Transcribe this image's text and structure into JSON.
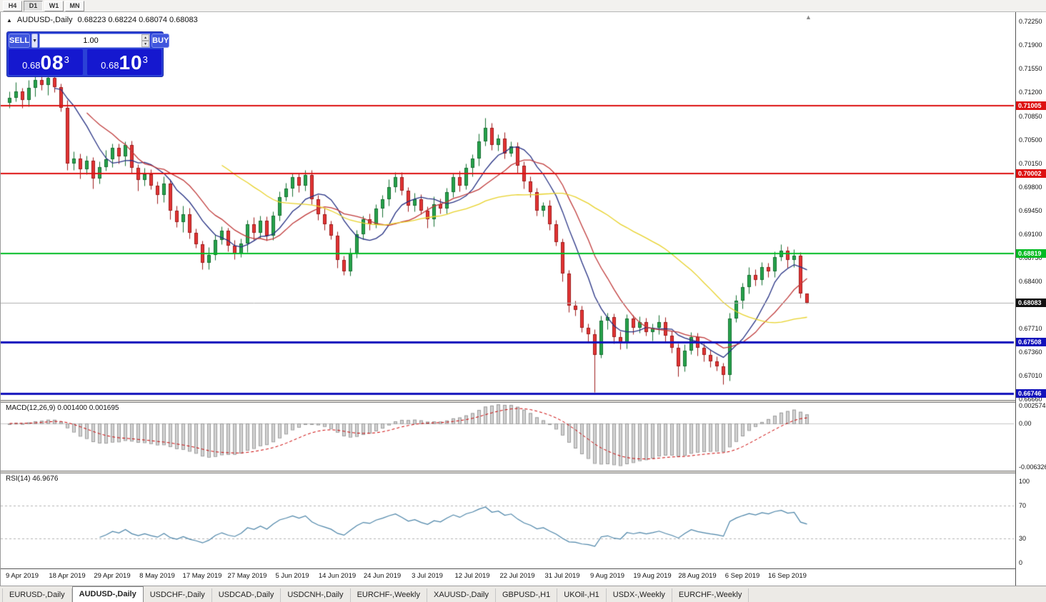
{
  "timeframe_toolbar": {
    "buttons": [
      "H4",
      "D1",
      "W1",
      "MN"
    ],
    "active": "D1"
  },
  "chart_header": {
    "marker": "▲",
    "title": "AUDUSD-,Daily",
    "ohlc": "0.68223 0.68224 0.68074 0.68083"
  },
  "one_click": {
    "sell_label": "SELL",
    "buy_label": "BUY",
    "volume": "1.00",
    "sell_price": {
      "prefix": "0.68",
      "big": "08",
      "sup": "3"
    },
    "buy_price": {
      "prefix": "0.68",
      "big": "10",
      "sup": "3"
    }
  },
  "price_axis": {
    "ticks": [
      {
        "label": "0.72250",
        "value": 0.7225
      },
      {
        "label": "0.71900",
        "value": 0.719
      },
      {
        "label": "0.71550",
        "value": 0.7155
      },
      {
        "label": "0.71200",
        "value": 0.712
      },
      {
        "label": "0.70850",
        "value": 0.7085
      },
      {
        "label": "0.70500",
        "value": 0.705
      },
      {
        "label": "0.70150",
        "value": 0.7015
      },
      {
        "label": "0.69800",
        "value": 0.698
      },
      {
        "label": "0.69450",
        "value": 0.6945
      },
      {
        "label": "0.69100",
        "value": 0.691
      },
      {
        "label": "0.68750",
        "value": 0.6875
      },
      {
        "label": "0.68400",
        "value": 0.684
      },
      {
        "label": "0.67710",
        "value": 0.6771
      },
      {
        "label": "0.67360",
        "value": 0.6736
      },
      {
        "label": "0.67010",
        "value": 0.6701
      },
      {
        "label": "0.66660",
        "value": 0.6666
      }
    ]
  },
  "levels": [
    {
      "label": "0.71005",
      "value": 0.71005,
      "color": "#dd1111",
      "width": 2
    },
    {
      "label": "0.70002",
      "value": 0.70002,
      "color": "#dd1111",
      "width": 2
    },
    {
      "label": "0.68819",
      "value": 0.68819,
      "color": "#00bb22",
      "width": 2
    },
    {
      "label": "0.67508",
      "value": 0.67508,
      "color": "#1111bb",
      "width": 3
    },
    {
      "label": "0.66746",
      "value": 0.66746,
      "color": "#1111bb",
      "width": 3
    }
  ],
  "current_price": {
    "label": "0.68083",
    "value": 0.68083,
    "bg": "#111111",
    "line_color": "#b0b0b0"
  },
  "chart_data": {
    "type": "candlestick",
    "symbol": "AUDUSD",
    "period": "Daily",
    "bull_color": "#27a24b",
    "bull_border": "#156f31",
    "bear_color": "#e23434",
    "bear_border": "#9e1b1b",
    "moving_averages": [
      {
        "period": 8,
        "color": "#253083"
      },
      {
        "period": 13,
        "color": "#c03a3a"
      },
      {
        "period": 34,
        "color": "#e8d229"
      }
    ],
    "candles": [
      [
        0.7105,
        0.7121,
        0.7097,
        0.7112
      ],
      [
        0.7112,
        0.7135,
        0.7107,
        0.7121
      ],
      [
        0.7121,
        0.7127,
        0.7097,
        0.7109
      ],
      [
        0.7109,
        0.7138,
        0.7099,
        0.7127
      ],
      [
        0.7127,
        0.7154,
        0.7114,
        0.7138
      ],
      [
        0.7138,
        0.7145,
        0.7124,
        0.7131
      ],
      [
        0.7131,
        0.7154,
        0.7116,
        0.7142
      ],
      [
        0.7142,
        0.7151,
        0.712,
        0.7128
      ],
      [
        0.7128,
        0.7133,
        0.7092,
        0.7097
      ],
      [
        0.7097,
        0.7109,
        0.7005,
        0.7015
      ],
      [
        0.7015,
        0.7033,
        0.7005,
        0.7022
      ],
      [
        0.7022,
        0.703,
        0.6993,
        0.7006
      ],
      [
        0.7006,
        0.7026,
        0.6999,
        0.7019
      ],
      [
        0.7019,
        0.7024,
        0.6978,
        0.6993
      ],
      [
        0.6993,
        0.7018,
        0.6985,
        0.7009
      ],
      [
        0.7009,
        0.7035,
        0.7004,
        0.7021
      ],
      [
        0.7021,
        0.7044,
        0.7009,
        0.7038
      ],
      [
        0.7038,
        0.7044,
        0.7015,
        0.7025
      ],
      [
        0.7025,
        0.7048,
        0.7012,
        0.7042
      ],
      [
        0.7042,
        0.7049,
        0.7001,
        0.7008
      ],
      [
        0.7008,
        0.7014,
        0.6975,
        0.699
      ],
      [
        0.699,
        0.7008,
        0.6982,
        0.6999
      ],
      [
        0.6999,
        0.7006,
        0.6977,
        0.6982
      ],
      [
        0.6982,
        0.6988,
        0.6956,
        0.6968
      ],
      [
        0.6968,
        0.6996,
        0.6958,
        0.6985
      ],
      [
        0.6985,
        0.6991,
        0.6932,
        0.6945
      ],
      [
        0.6945,
        0.6952,
        0.6921,
        0.6928
      ],
      [
        0.6928,
        0.6952,
        0.6913,
        0.694
      ],
      [
        0.694,
        0.6949,
        0.6904,
        0.6912
      ],
      [
        0.6912,
        0.6919,
        0.689,
        0.6895
      ],
      [
        0.6895,
        0.6901,
        0.6858,
        0.6868
      ],
      [
        0.6868,
        0.6891,
        0.6858,
        0.688
      ],
      [
        0.688,
        0.691,
        0.6872,
        0.6902
      ],
      [
        0.6902,
        0.6922,
        0.6895,
        0.6915
      ],
      [
        0.6915,
        0.692,
        0.6885,
        0.6893
      ],
      [
        0.6893,
        0.6902,
        0.6873,
        0.6881
      ],
      [
        0.6881,
        0.6904,
        0.6876,
        0.6896
      ],
      [
        0.6896,
        0.6931,
        0.6884,
        0.6925
      ],
      [
        0.6925,
        0.6936,
        0.6902,
        0.6912
      ],
      [
        0.6912,
        0.6938,
        0.6905,
        0.693
      ],
      [
        0.693,
        0.6937,
        0.6901,
        0.6908
      ],
      [
        0.6908,
        0.6944,
        0.6902,
        0.6938
      ],
      [
        0.6938,
        0.6974,
        0.693,
        0.6965
      ],
      [
        0.6965,
        0.6986,
        0.696,
        0.6978
      ],
      [
        0.6978,
        0.7001,
        0.6966,
        0.6995
      ],
      [
        0.6995,
        0.7001,
        0.6972,
        0.6982
      ],
      [
        0.6982,
        0.7005,
        0.6975,
        0.6998
      ],
      [
        0.6998,
        0.7005,
        0.6955,
        0.6962
      ],
      [
        0.6962,
        0.6968,
        0.6931,
        0.694
      ],
      [
        0.694,
        0.6949,
        0.6917,
        0.6925
      ],
      [
        0.6925,
        0.693,
        0.6903,
        0.6908
      ],
      [
        0.6908,
        0.6914,
        0.686,
        0.6872
      ],
      [
        0.6872,
        0.6878,
        0.685,
        0.6855
      ],
      [
        0.6855,
        0.689,
        0.6849,
        0.6882
      ],
      [
        0.6882,
        0.6917,
        0.6875,
        0.691
      ],
      [
        0.691,
        0.6938,
        0.6903,
        0.6932
      ],
      [
        0.6932,
        0.6941,
        0.6917,
        0.6925
      ],
      [
        0.6925,
        0.6955,
        0.692,
        0.6948
      ],
      [
        0.6948,
        0.6968,
        0.6936,
        0.6962
      ],
      [
        0.6962,
        0.6991,
        0.6952,
        0.698
      ],
      [
        0.698,
        0.7002,
        0.6973,
        0.6995
      ],
      [
        0.6995,
        0.7002,
        0.6968,
        0.6975
      ],
      [
        0.6975,
        0.698,
        0.6944,
        0.6952
      ],
      [
        0.6952,
        0.6971,
        0.6944,
        0.6962
      ],
      [
        0.6962,
        0.6969,
        0.694,
        0.6945
      ],
      [
        0.6945,
        0.6951,
        0.692,
        0.6932
      ],
      [
        0.6932,
        0.6966,
        0.6922,
        0.6955
      ],
      [
        0.6955,
        0.6963,
        0.6941,
        0.6948
      ],
      [
        0.6948,
        0.6979,
        0.6941,
        0.6972
      ],
      [
        0.6972,
        0.7001,
        0.6965,
        0.6995
      ],
      [
        0.6995,
        0.7004,
        0.6974,
        0.6982
      ],
      [
        0.6982,
        0.7015,
        0.6977,
        0.7008
      ],
      [
        0.7008,
        0.7028,
        0.6996,
        0.7022
      ],
      [
        0.7022,
        0.7059,
        0.7012,
        0.7048
      ],
      [
        0.7048,
        0.7082,
        0.7041,
        0.7068
      ],
      [
        0.7068,
        0.7075,
        0.7035,
        0.7042
      ],
      [
        0.7042,
        0.7058,
        0.7034,
        0.7052
      ],
      [
        0.7052,
        0.7061,
        0.7022,
        0.703
      ],
      [
        0.703,
        0.7048,
        0.7025,
        0.704
      ],
      [
        0.704,
        0.7046,
        0.7,
        0.7012
      ],
      [
        0.7012,
        0.7018,
        0.6978,
        0.6988
      ],
      [
        0.6988,
        0.6996,
        0.6965,
        0.6972
      ],
      [
        0.6972,
        0.6979,
        0.6938,
        0.6945
      ],
      [
        0.6945,
        0.6958,
        0.6937,
        0.6952
      ],
      [
        0.6952,
        0.6961,
        0.6917,
        0.6925
      ],
      [
        0.6925,
        0.6931,
        0.6893,
        0.6898
      ],
      [
        0.6898,
        0.6904,
        0.684,
        0.6852
      ],
      [
        0.6852,
        0.6857,
        0.6795,
        0.6805
      ],
      [
        0.6805,
        0.6812,
        0.679,
        0.6798
      ],
      [
        0.6798,
        0.6805,
        0.6765,
        0.6772
      ],
      [
        0.6772,
        0.6778,
        0.6752,
        0.6762
      ],
      [
        0.6762,
        0.677,
        0.6677,
        0.6732
      ],
      [
        0.6732,
        0.679,
        0.6727,
        0.6782
      ],
      [
        0.6782,
        0.6794,
        0.677,
        0.6788
      ],
      [
        0.6788,
        0.6793,
        0.6748,
        0.6758
      ],
      [
        0.6758,
        0.6766,
        0.674,
        0.6748
      ],
      [
        0.6748,
        0.6792,
        0.6741,
        0.6785
      ],
      [
        0.6785,
        0.6791,
        0.6762,
        0.6772
      ],
      [
        0.6772,
        0.6789,
        0.6764,
        0.678
      ],
      [
        0.678,
        0.6787,
        0.676,
        0.6765
      ],
      [
        0.6765,
        0.6778,
        0.6753,
        0.6772
      ],
      [
        0.6772,
        0.6791,
        0.6762,
        0.678
      ],
      [
        0.678,
        0.6788,
        0.6752,
        0.676
      ],
      [
        0.676,
        0.6767,
        0.6735,
        0.6742
      ],
      [
        0.6742,
        0.6748,
        0.67,
        0.6715
      ],
      [
        0.6715,
        0.6747,
        0.6707,
        0.6738
      ],
      [
        0.6738,
        0.6765,
        0.6733,
        0.6758
      ],
      [
        0.6758,
        0.6764,
        0.673,
        0.6742
      ],
      [
        0.6742,
        0.6748,
        0.6722,
        0.6732
      ],
      [
        0.6732,
        0.674,
        0.6714,
        0.6722
      ],
      [
        0.6722,
        0.6729,
        0.6708,
        0.6715
      ],
      [
        0.6715,
        0.672,
        0.6688,
        0.6702
      ],
      [
        0.6702,
        0.6794,
        0.6694,
        0.6785
      ],
      [
        0.6785,
        0.682,
        0.678,
        0.6812
      ],
      [
        0.6812,
        0.6838,
        0.68,
        0.6832
      ],
      [
        0.6832,
        0.6861,
        0.6822,
        0.685
      ],
      [
        0.685,
        0.6858,
        0.6834,
        0.6842
      ],
      [
        0.6842,
        0.6869,
        0.6835,
        0.6862
      ],
      [
        0.6862,
        0.6868,
        0.6847,
        0.6855
      ],
      [
        0.6855,
        0.6885,
        0.6847,
        0.6876
      ],
      [
        0.6876,
        0.6895,
        0.6871,
        0.6886
      ],
      [
        0.6886,
        0.6892,
        0.686,
        0.6872
      ],
      [
        0.6872,
        0.6888,
        0.6862,
        0.6878
      ],
      [
        0.6878,
        0.6884,
        0.6816,
        0.6822
      ],
      [
        0.68223,
        0.68224,
        0.68074,
        0.68083
      ]
    ],
    "date_label_indices": [
      2,
      9,
      16,
      23,
      30,
      37,
      44,
      51,
      58,
      65,
      72,
      79,
      86,
      93,
      100,
      107,
      114,
      121
    ]
  },
  "macd_panel": {
    "label": "MACD(12,26,9) 0.001400 0.001695",
    "fast": 12,
    "slow": 26,
    "signal": 9,
    "histogram_fill": "#d2d2d2",
    "histogram_border": "#9b9b9b",
    "signal_color": "#cc0000",
    "scale_labels": [
      {
        "text": "0.002574",
        "value": 0.002574
      },
      {
        "text": "0.00",
        "value": 0
      },
      {
        "text": "-0.006326",
        "value": -0.006326
      }
    ]
  },
  "rsi_panel": {
    "label": "RSI(14) 46.9676",
    "period": 14,
    "current": 46.9676,
    "line_color": "#4b84a8",
    "levels": [
      70,
      30
    ],
    "scale_labels": [
      {
        "text": "100",
        "value": 100
      },
      {
        "text": "70",
        "value": 70
      },
      {
        "text": "30",
        "value": 30
      },
      {
        "text": "0",
        "value": 0
      }
    ]
  },
  "date_axis": {
    "labels": [
      "9 Apr 2019",
      "18 Apr 2019",
      "29 Apr 2019",
      "8 May 2019",
      "17 May 2019",
      "27 May 2019",
      "5 Jun 2019",
      "14 Jun 2019",
      "24 Jun 2019",
      "3 Jul 2019",
      "12 Jul 2019",
      "22 Jul 2019",
      "31 Jul 2019",
      "9 Aug 2019",
      "19 Aug 2019",
      "28 Aug 2019",
      "6 Sep 2019",
      "16 Sep 2019"
    ]
  },
  "tab_bar": {
    "active_index": 1,
    "tabs": [
      "EURUSD-,Daily",
      "AUDUSD-,Daily",
      "USDCHF-,Daily",
      "USDCAD-,Daily",
      "USDCNH-,Daily",
      "EURCHF-,Weekly",
      "XAUUSD-,Daily",
      "GBPUSD-,H1",
      "UKOil-,H1",
      "USDX-,Weekly",
      "EURCHF-,Weekly"
    ]
  }
}
